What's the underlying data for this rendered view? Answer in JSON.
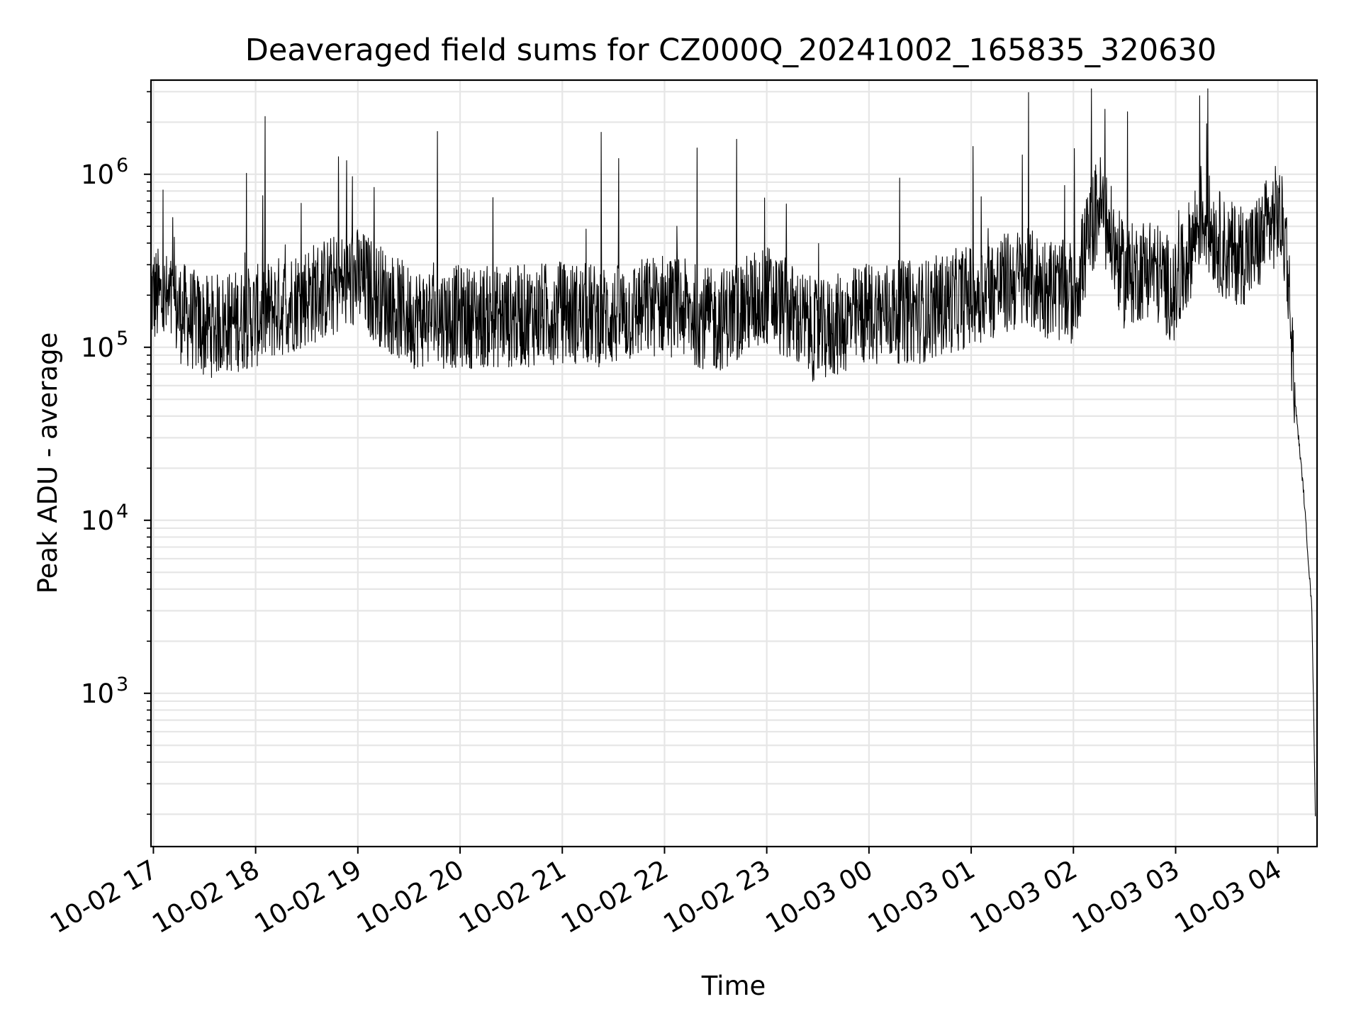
{
  "chart_data": {
    "type": "line",
    "title": "Deaveraged field sums for CZ000Q_20241002_165835_320630",
    "xlabel": "Time",
    "ylabel": "Peak ADU - average",
    "yscale": "log",
    "ylim": [
      130,
      3500000
    ],
    "xlim": [
      "2024-10-02T16:58:35",
      "2024-10-03T04:23:00"
    ],
    "x_ticks": [
      "10-02 17",
      "10-02 18",
      "10-02 19",
      "10-02 20",
      "10-02 21",
      "10-02 22",
      "10-02 23",
      "10-03 00",
      "10-03 01",
      "10-03 02",
      "10-03 03",
      "10-03 04"
    ],
    "y_ticks": [
      {
        "base": "10",
        "exp": "3",
        "value": 1000
      },
      {
        "base": "10",
        "exp": "4",
        "value": 10000
      },
      {
        "base": "10",
        "exp": "5",
        "value": 100000
      },
      {
        "base": "10",
        "exp": "6",
        "value": 1000000
      }
    ],
    "grid": "major and minor",
    "line_color": "#000000",
    "grid_color": "#e6e6e6",
    "series": [
      {
        "x": [
          "2024-10-02T17:00",
          "2024-10-02T17:30",
          "2024-10-02T18:00",
          "2024-10-02T18:30",
          "2024-10-02T19:00",
          "2024-10-02T19:30",
          "2024-10-02T20:00",
          "2024-10-02T20:30",
          "2024-10-02T21:00",
          "2024-10-02T21:30",
          "2024-10-02T22:00",
          "2024-10-02T22:30",
          "2024-10-02T23:00",
          "2024-10-02T23:30",
          "2024-10-03T00:00",
          "2024-10-03T00:30",
          "2024-10-03T01:00",
          "2024-10-03T01:30",
          "2024-10-03T02:00",
          "2024-10-03T02:15",
          "2024-10-03T02:30",
          "2024-10-03T02:45",
          "2024-10-03T03:00",
          "2024-10-03T03:15",
          "2024-10-03T03:30",
          "2024-10-03T03:45",
          "2024-10-03T04:00",
          "2024-10-03T04:05",
          "2024-10-03T04:10",
          "2024-10-03T04:15",
          "2024-10-03T04:20",
          "2024-10-03T04:22"
        ],
        "y": [
          200000,
          130000,
          150000,
          200000,
          250000,
          150000,
          150000,
          150000,
          160000,
          150000,
          180000,
          140000,
          200000,
          120000,
          160000,
          160000,
          200000,
          250000,
          200000,
          700000,
          250000,
          300000,
          200000,
          600000,
          350000,
          350000,
          600000,
          400000,
          50000,
          15000,
          3000,
          200
        ]
      }
    ],
    "noise": {
      "seed": 12345,
      "amplitude_decades": 0.6,
      "spike_probability": 0.012
    }
  }
}
